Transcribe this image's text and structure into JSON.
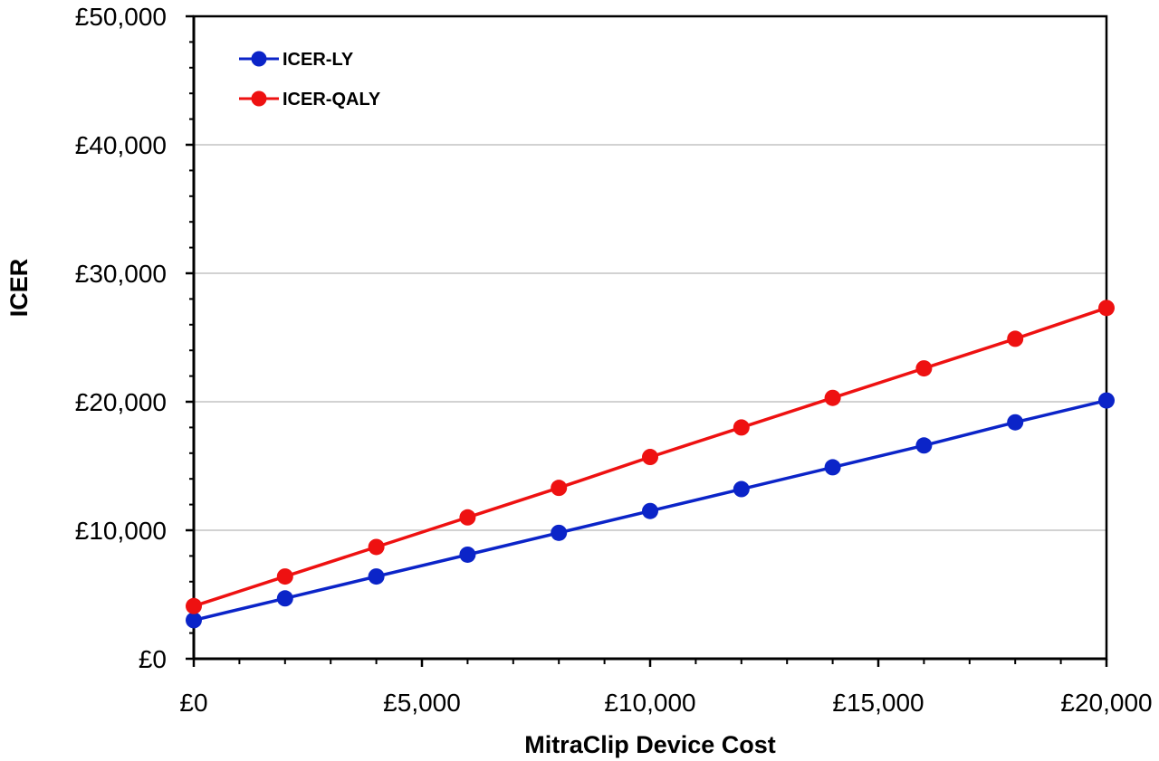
{
  "chart_data": {
    "type": "line",
    "title": "",
    "xlabel": "MitraClip Device Cost",
    "ylabel": "ICER",
    "xlim": [
      0,
      20000
    ],
    "ylim": [
      0,
      50000
    ],
    "x_ticks": [
      "£0",
      "£5,000",
      "£10,000",
      "£15,000",
      "£20,000"
    ],
    "y_ticks": [
      "£0",
      "£10,000",
      "£20,000",
      "£30,000",
      "£40,000",
      "£50,000"
    ],
    "grid": "horizontal",
    "legend_position": "top-left",
    "x": [
      0,
      2000,
      4000,
      6000,
      8000,
      10000,
      12000,
      14000,
      16000,
      18000,
      20000
    ],
    "series": [
      {
        "name": "ICER-LY",
        "color": "#0b24c8",
        "values": [
          3000,
          4700,
          6400,
          8100,
          9800,
          11500,
          13200,
          14900,
          16600,
          18400,
          20100
        ]
      },
      {
        "name": "ICER-QALY",
        "color": "#ee1111",
        "values": [
          4100,
          6400,
          8700,
          11000,
          13300,
          15700,
          18000,
          20300,
          22600,
          24900,
          27300
        ]
      }
    ]
  }
}
